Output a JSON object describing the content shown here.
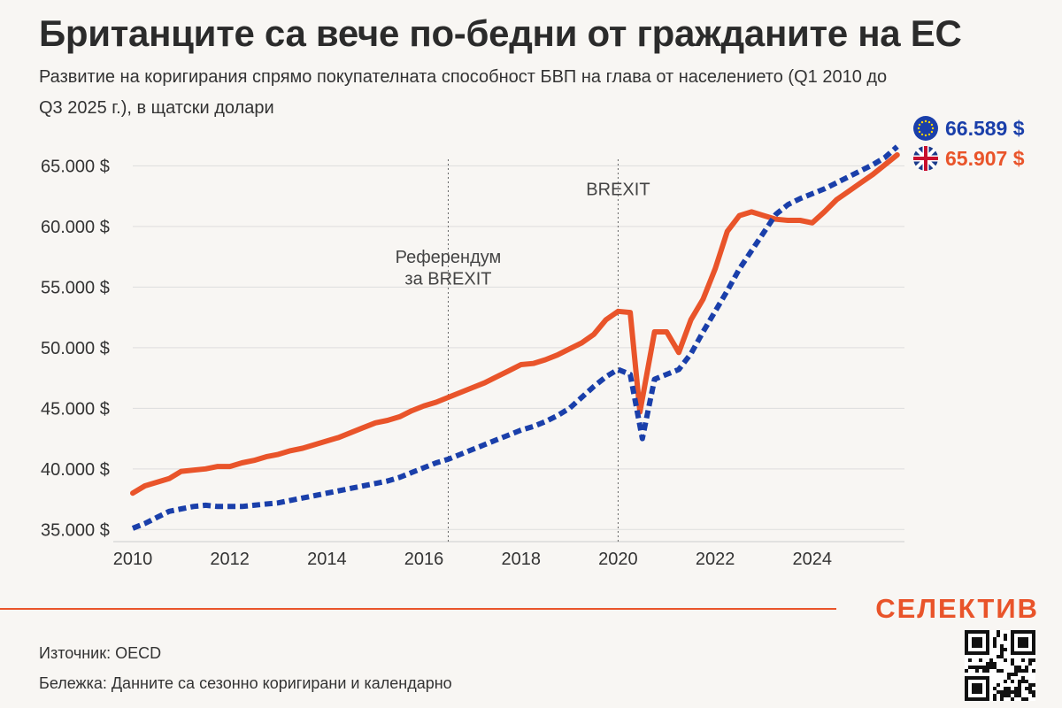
{
  "header": {
    "title": "Британците са вече по-бедни от гражданите на ЕС",
    "subtitle": "Развитие на коригирания спрямо покупателната способност БВП на глава от населението (Q1 2010 до Q3 2025 г.), в щатски долари"
  },
  "footer": {
    "brand": "СЕЛЕКТИВ",
    "source": "Източник: OECD",
    "note": "Бележка: Данните са сезонно коригирани и календарно"
  },
  "colors": {
    "uk": "#e9542a",
    "eu": "#1a3faa",
    "grid": "#dddddd",
    "annotation_line": "#666666"
  },
  "chart_data": {
    "type": "line",
    "title": "Британците са вече по-бедни от гражданите на ЕС",
    "subtitle": "Развитие на коригирания спрямо покупателната способност БВП на глава от населението (Q1 2010 до Q3 2025 г.), в щатски долари",
    "xlim": [
      2010,
      2025.9
    ],
    "ylim": [
      34000,
      67000
    ],
    "y_ticks": [
      {
        "value": 35000,
        "label": "35.000 $"
      },
      {
        "value": 40000,
        "label": "40.000 $"
      },
      {
        "value": 45000,
        "label": "45.000 $"
      },
      {
        "value": 50000,
        "label": "50.000 $"
      },
      {
        "value": 55000,
        "label": "55.000 $"
      },
      {
        "value": 60000,
        "label": "60.000 $"
      },
      {
        "value": 65000,
        "label": "65.000 $"
      }
    ],
    "x_ticks": [
      {
        "value": 2010,
        "label": "2010"
      },
      {
        "value": 2012,
        "label": "2012"
      },
      {
        "value": 2014,
        "label": "2014"
      },
      {
        "value": 2016,
        "label": "2016"
      },
      {
        "value": 2018,
        "label": "2018"
      },
      {
        "value": 2020,
        "label": "2020"
      },
      {
        "value": 2022,
        "label": "2022"
      },
      {
        "value": 2024,
        "label": "2024"
      }
    ],
    "grid": true,
    "annotations": [
      {
        "x": 2016.5,
        "lines": [
          "Референдум",
          "за BREXIT"
        ],
        "y_text": [
          57000,
          55200
        ]
      },
      {
        "x": 2020.0,
        "lines": [
          "BREXIT"
        ],
        "y_text": [
          62600
        ]
      }
    ],
    "series": [
      {
        "key": "uk",
        "end_label": "65.907 $",
        "style": "solid",
        "points": [
          [
            2010.0,
            38000
          ],
          [
            2010.25,
            38600
          ],
          [
            2010.5,
            38900
          ],
          [
            2010.75,
            39200
          ],
          [
            2011.0,
            39800
          ],
          [
            2011.25,
            39900
          ],
          [
            2011.5,
            40000
          ],
          [
            2011.75,
            40200
          ],
          [
            2012.0,
            40200
          ],
          [
            2012.25,
            40500
          ],
          [
            2012.5,
            40700
          ],
          [
            2012.75,
            41000
          ],
          [
            2013.0,
            41200
          ],
          [
            2013.25,
            41500
          ],
          [
            2013.5,
            41700
          ],
          [
            2013.75,
            42000
          ],
          [
            2014.0,
            42300
          ],
          [
            2014.25,
            42600
          ],
          [
            2014.5,
            43000
          ],
          [
            2014.75,
            43400
          ],
          [
            2015.0,
            43800
          ],
          [
            2015.25,
            44000
          ],
          [
            2015.5,
            44300
          ],
          [
            2015.75,
            44800
          ],
          [
            2016.0,
            45200
          ],
          [
            2016.25,
            45500
          ],
          [
            2016.5,
            45900
          ],
          [
            2016.75,
            46300
          ],
          [
            2017.0,
            46700
          ],
          [
            2017.25,
            47100
          ],
          [
            2017.5,
            47600
          ],
          [
            2017.75,
            48100
          ],
          [
            2018.0,
            48600
          ],
          [
            2018.25,
            48700
          ],
          [
            2018.5,
            49000
          ],
          [
            2018.75,
            49400
          ],
          [
            2019.0,
            49900
          ],
          [
            2019.25,
            50400
          ],
          [
            2019.5,
            51100
          ],
          [
            2019.75,
            52300
          ],
          [
            2020.0,
            53000
          ],
          [
            2020.25,
            52900
          ],
          [
            2020.45,
            44700
          ],
          [
            2020.75,
            51300
          ],
          [
            2021.0,
            51300
          ],
          [
            2021.25,
            49600
          ],
          [
            2021.5,
            52300
          ],
          [
            2021.75,
            54000
          ],
          [
            2022.0,
            56500
          ],
          [
            2022.25,
            59600
          ],
          [
            2022.5,
            60900
          ],
          [
            2022.75,
            61200
          ],
          [
            2023.0,
            60900
          ],
          [
            2023.25,
            60600
          ],
          [
            2023.5,
            60500
          ],
          [
            2023.75,
            60500
          ],
          [
            2024.0,
            60300
          ],
          [
            2024.25,
            61200
          ],
          [
            2024.5,
            62200
          ],
          [
            2024.75,
            62900
          ],
          [
            2025.0,
            63600
          ],
          [
            2025.25,
            64300
          ],
          [
            2025.5,
            65100
          ],
          [
            2025.75,
            65907
          ]
        ]
      },
      {
        "key": "eu",
        "end_label": "66.589 $",
        "style": "dashed",
        "points": [
          [
            2010.0,
            35100
          ],
          [
            2010.25,
            35500
          ],
          [
            2010.5,
            36000
          ],
          [
            2010.75,
            36500
          ],
          [
            2011.0,
            36700
          ],
          [
            2011.25,
            36900
          ],
          [
            2011.5,
            37000
          ],
          [
            2011.75,
            36900
          ],
          [
            2012.0,
            36900
          ],
          [
            2012.25,
            36900
          ],
          [
            2012.5,
            37000
          ],
          [
            2012.75,
            37100
          ],
          [
            2013.0,
            37200
          ],
          [
            2013.25,
            37400
          ],
          [
            2013.5,
            37600
          ],
          [
            2013.75,
            37800
          ],
          [
            2014.0,
            38000
          ],
          [
            2014.25,
            38200
          ],
          [
            2014.5,
            38400
          ],
          [
            2014.75,
            38600
          ],
          [
            2015.0,
            38800
          ],
          [
            2015.25,
            39000
          ],
          [
            2015.5,
            39300
          ],
          [
            2015.75,
            39700
          ],
          [
            2016.0,
            40100
          ],
          [
            2016.25,
            40500
          ],
          [
            2016.5,
            40800
          ],
          [
            2016.75,
            41200
          ],
          [
            2017.0,
            41600
          ],
          [
            2017.25,
            42000
          ],
          [
            2017.5,
            42400
          ],
          [
            2017.75,
            42800
          ],
          [
            2018.0,
            43200
          ],
          [
            2018.25,
            43500
          ],
          [
            2018.5,
            43900
          ],
          [
            2018.75,
            44400
          ],
          [
            2019.0,
            45000
          ],
          [
            2019.25,
            45900
          ],
          [
            2019.5,
            46800
          ],
          [
            2019.75,
            47600
          ],
          [
            2020.0,
            48200
          ],
          [
            2020.25,
            47800
          ],
          [
            2020.5,
            42500
          ],
          [
            2020.75,
            47400
          ],
          [
            2021.0,
            47800
          ],
          [
            2021.25,
            48200
          ],
          [
            2021.5,
            49500
          ],
          [
            2021.75,
            51300
          ],
          [
            2022.0,
            53000
          ],
          [
            2022.25,
            54700
          ],
          [
            2022.5,
            56500
          ],
          [
            2022.75,
            58000
          ],
          [
            2023.0,
            59500
          ],
          [
            2023.25,
            61000
          ],
          [
            2023.5,
            61800
          ],
          [
            2023.75,
            62300
          ],
          [
            2024.0,
            62700
          ],
          [
            2024.25,
            63100
          ],
          [
            2024.5,
            63600
          ],
          [
            2024.75,
            64100
          ],
          [
            2025.0,
            64600
          ],
          [
            2025.25,
            65100
          ],
          [
            2025.5,
            65700
          ],
          [
            2025.75,
            66589
          ]
        ]
      }
    ]
  }
}
